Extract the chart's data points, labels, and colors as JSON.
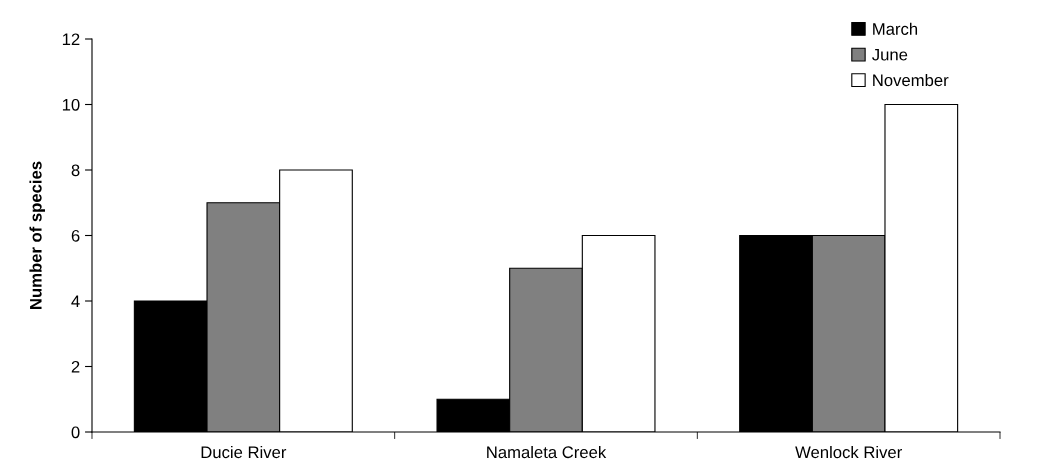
{
  "chart_data": {
    "type": "bar",
    "ylabel": "Number of species",
    "categories": [
      "Ducie River",
      "Namaleta Creek",
      "Wenlock River"
    ],
    "series": [
      {
        "name": "March",
        "color": "#000000",
        "values": [
          4,
          1,
          6
        ]
      },
      {
        "name": "June",
        "color": "#808080",
        "values": [
          7,
          5,
          6
        ]
      },
      {
        "name": "November",
        "color": "#ffffff",
        "values": [
          8,
          6,
          10
        ]
      }
    ],
    "ylim": [
      0,
      12
    ],
    "yticks": [
      0,
      2,
      4,
      6,
      8,
      10,
      12
    ],
    "grid": false,
    "legend": "top right"
  }
}
